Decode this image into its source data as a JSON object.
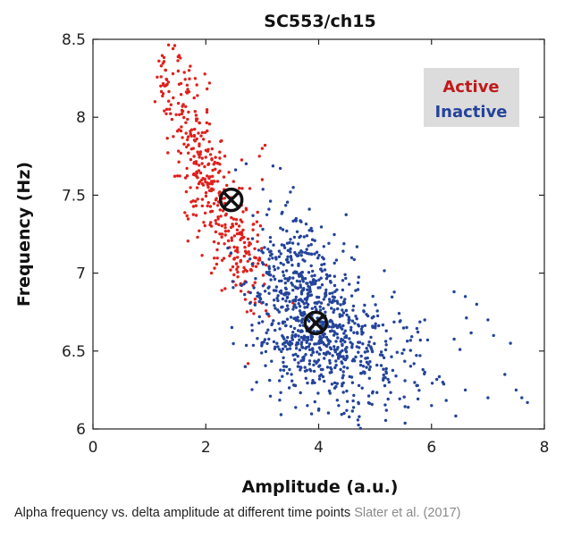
{
  "chart_data": {
    "type": "scatter",
    "title": "SC553/ch15",
    "xlabel": "Amplitude (a.u.)",
    "ylabel": "Frequency (Hz)",
    "xlim": [
      0,
      8
    ],
    "ylim": [
      6,
      8.5
    ],
    "xticks": [
      "0",
      "2",
      "4",
      "6",
      "8"
    ],
    "yticks": [
      "6",
      "6.5",
      "7",
      "7.5",
      "8",
      "8.5"
    ],
    "legend_placement": "top-right",
    "series": [
      {
        "name": "Active",
        "color": "#e0201c",
        "centroid": [
          2.45,
          7.47
        ],
        "clusters": [
          {
            "cx": 1.9,
            "cy": 7.75,
            "sx": 0.28,
            "sy": 0.28,
            "corr": -0.55,
            "n": 220
          },
          {
            "cx": 2.6,
            "cy": 7.15,
            "sx": 0.25,
            "sy": 0.18,
            "corr": -0.3,
            "n": 150
          },
          {
            "cx": 1.4,
            "cy": 8.2,
            "sx": 0.15,
            "sy": 0.12,
            "corr": -0.4,
            "n": 40
          }
        ],
        "values": [
          [
            1.45,
            8.46
          ],
          [
            1.42,
            8.44
          ],
          [
            1.55,
            8.38
          ],
          [
            3.0,
            7.8
          ],
          [
            3.05,
            7.82
          ],
          [
            2.95,
            7.75
          ],
          [
            3.0,
            7.6
          ],
          [
            2.8,
            6.76
          ],
          [
            2.85,
            6.74
          ],
          [
            2.7,
            6.4
          ],
          [
            2.75,
            6.42
          ],
          [
            2.1,
            7.0
          ],
          [
            1.1,
            8.1
          ],
          [
            1.2,
            8.2
          ]
        ]
      },
      {
        "name": "Inactive",
        "color": "#24449a",
        "centroid": [
          3.95,
          6.68
        ],
        "clusters": [
          {
            "cx": 3.9,
            "cy": 6.7,
            "sx": 0.55,
            "sy": 0.28,
            "corr": -0.35,
            "n": 750
          },
          {
            "cx": 5.2,
            "cy": 6.45,
            "sx": 0.6,
            "sy": 0.2,
            "corr": -0.3,
            "n": 130
          },
          {
            "cx": 3.5,
            "cy": 7.1,
            "sx": 0.3,
            "sy": 0.2,
            "corr": 0.0,
            "n": 80
          }
        ],
        "values": [
          [
            3.55,
            7.55
          ],
          [
            3.5,
            7.52
          ],
          [
            3.6,
            7.35
          ],
          [
            6.4,
            6.88
          ],
          [
            6.6,
            6.85
          ],
          [
            6.8,
            6.8
          ],
          [
            7.0,
            6.7
          ],
          [
            7.1,
            6.6
          ],
          [
            7.4,
            6.55
          ],
          [
            7.6,
            6.2
          ],
          [
            7.7,
            6.17
          ],
          [
            7.5,
            6.25
          ],
          [
            7.3,
            6.35
          ],
          [
            6.0,
            6.15
          ],
          [
            5.2,
            6.12
          ],
          [
            4.0,
            6.12
          ],
          [
            3.8,
            6.15
          ],
          [
            2.9,
            6.3
          ],
          [
            2.7,
            6.4
          ],
          [
            6.6,
            6.25
          ],
          [
            6.2,
            6.3
          ],
          [
            7.0,
            6.2
          ]
        ]
      }
    ]
  },
  "caption": {
    "text": "Alpha frequency vs. delta amplitude at different time points",
    "citation": "Slater et al. (2017)"
  }
}
